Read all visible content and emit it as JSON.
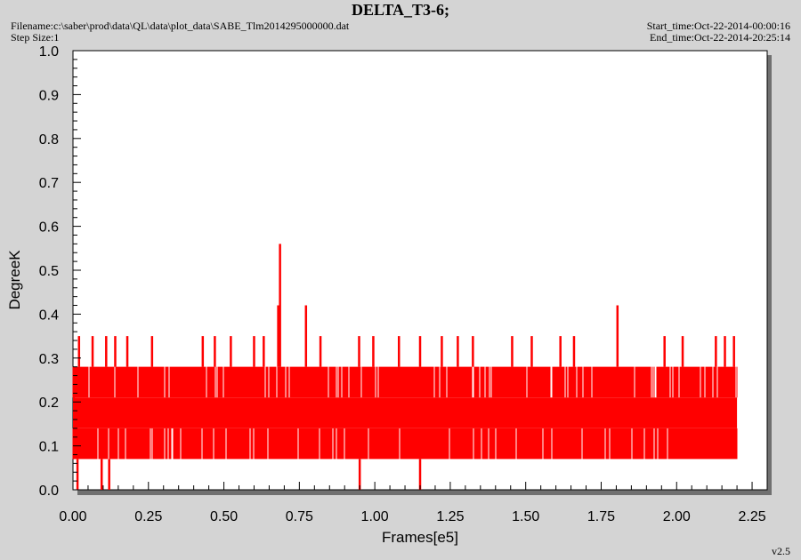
{
  "header": {
    "title": "DELTA_T3-6;",
    "filename": "Filename:c:\\saber\\prod\\data\\QL\\data\\plot_data\\SABE_Tlm2014295000000.dat",
    "step_size": "Step Size:1",
    "start_time": "Start_time:Oct-22-2014-00:00:16",
    "end_time": "End_time:Oct-22-2014-20:25:14"
  },
  "footer": {
    "version": "v2.5"
  },
  "colors": {
    "series": "#ff0000",
    "plot_bg": "#ffffff",
    "page_bg": "#d4d4d4",
    "shadow": "#707070"
  },
  "chart_data": {
    "type": "line",
    "title": "DELTA_T3-6;",
    "xlabel": "Frames[e5]",
    "ylabel": "DegreeK",
    "xlim": [
      0,
      2.3
    ],
    "ylim": [
      0,
      1.0
    ],
    "x_ticks": [
      "0.00",
      "0.25",
      "0.50",
      "0.75",
      "1.00",
      "1.25",
      "1.50",
      "1.75",
      "2.00",
      "2.25"
    ],
    "y_ticks": [
      "0.0",
      "0.1",
      "0.2",
      "0.3",
      "0.4",
      "0.5",
      "0.6",
      "0.7",
      "0.8",
      "0.9",
      "1.0"
    ],
    "grid": false,
    "series": [
      {
        "color": "#ff0000",
        "x_range": [
          0,
          2.2
        ],
        "dense_band": [
          0.07,
          0.28
        ],
        "noise_band_values": [
          0.07,
          0.14,
          0.21,
          0.28
        ],
        "spikes": [
          {
            "x": 0.686,
            "y": 0.56
          },
          {
            "x": 0.68,
            "y": 0.42
          },
          {
            "x": 0.772,
            "y": 0.42
          },
          {
            "x": 1.804,
            "y": 0.42
          },
          {
            "x": 0.02,
            "y": 0.35
          },
          {
            "x": 0.065,
            "y": 0.35
          },
          {
            "x": 0.11,
            "y": 0.35
          },
          {
            "x": 0.14,
            "y": 0.35
          },
          {
            "x": 0.18,
            "y": 0.35
          },
          {
            "x": 0.262,
            "y": 0.35
          },
          {
            "x": 0.43,
            "y": 0.35
          },
          {
            "x": 0.47,
            "y": 0.35
          },
          {
            "x": 0.523,
            "y": 0.35
          },
          {
            "x": 0.6,
            "y": 0.35
          },
          {
            "x": 0.632,
            "y": 0.35
          },
          {
            "x": 0.82,
            "y": 0.35
          },
          {
            "x": 0.948,
            "y": 0.35
          },
          {
            "x": 0.995,
            "y": 0.35
          },
          {
            "x": 1.08,
            "y": 0.35
          },
          {
            "x": 1.15,
            "y": 0.35
          },
          {
            "x": 1.222,
            "y": 0.35
          },
          {
            "x": 1.275,
            "y": 0.35
          },
          {
            "x": 1.325,
            "y": 0.35
          },
          {
            "x": 1.455,
            "y": 0.35
          },
          {
            "x": 1.52,
            "y": 0.35
          },
          {
            "x": 1.615,
            "y": 0.35
          },
          {
            "x": 1.66,
            "y": 0.35
          },
          {
            "x": 1.96,
            "y": 0.35
          },
          {
            "x": 2.02,
            "y": 0.35
          },
          {
            "x": 2.13,
            "y": 0.35
          },
          {
            "x": 2.16,
            "y": 0.35
          },
          {
            "x": 2.19,
            "y": 0.35
          },
          {
            "x": 0.015,
            "y": 0.0
          },
          {
            "x": 0.095,
            "y": 0.0
          },
          {
            "x": 0.12,
            "y": 0.0
          },
          {
            "x": 0.95,
            "y": 0.0
          },
          {
            "x": 1.15,
            "y": 0.0
          }
        ]
      }
    ]
  }
}
